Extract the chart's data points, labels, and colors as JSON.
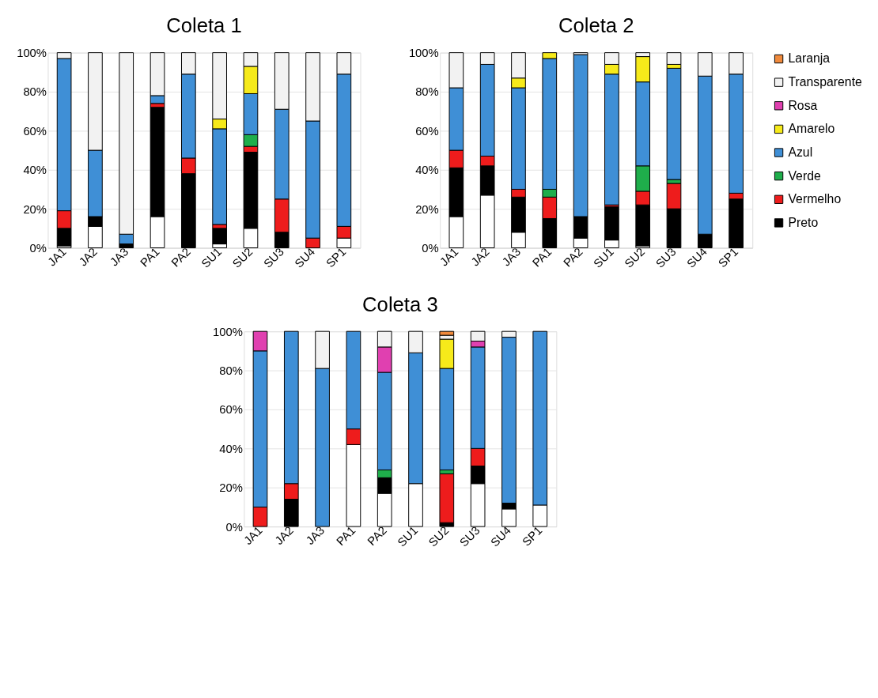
{
  "chart_data": [
    {
      "type": "bar",
      "title": "Coleta 1",
      "stacked": true,
      "legend": false,
      "grid": "y",
      "categories": [
        "JA1",
        "JA2",
        "JA3",
        "PA1",
        "PA2",
        "SU1",
        "SU2",
        "SU3",
        "SU4",
        "SP1"
      ],
      "ylim": [
        0,
        100
      ],
      "yticks": [
        {
          "value": 0,
          "label": "0%"
        },
        {
          "value": 20,
          "label": "20%"
        },
        {
          "value": 40,
          "label": "40%"
        },
        {
          "value": 60,
          "label": "60%"
        },
        {
          "value": 80,
          "label": "80%"
        },
        {
          "value": 100,
          "label": "100%"
        }
      ],
      "series": [
        {
          "color": "#ffffff",
          "values": [
            1,
            11,
            null,
            16,
            null,
            2,
            10,
            null,
            null,
            5
          ]
        },
        {
          "color": "#000000",
          "values": [
            9,
            5,
            2,
            56,
            38,
            8,
            39,
            8,
            null,
            null
          ]
        },
        {
          "color": "#ee1c1c",
          "values": [
            9,
            null,
            null,
            2,
            8,
            2,
            3,
            17,
            5,
            6
          ]
        },
        {
          "color": "#1fae4b",
          "values": [
            null,
            null,
            null,
            null,
            null,
            null,
            6,
            null,
            null,
            null
          ]
        },
        {
          "color": "#3f8fd6",
          "values": [
            78,
            34,
            5,
            4,
            43,
            49,
            21,
            46,
            60,
            78
          ]
        },
        {
          "color": "#f6ea1a",
          "values": [
            null,
            null,
            null,
            null,
            null,
            5,
            14,
            null,
            null,
            null
          ]
        },
        {
          "color": "#f2f2f2",
          "values": [
            3,
            50,
            93,
            22,
            11,
            34,
            7,
            29,
            35,
            11
          ]
        }
      ]
    },
    {
      "type": "bar",
      "title": "Coleta 2",
      "stacked": true,
      "legend": false,
      "grid": "y",
      "categories": [
        "JA1",
        "JA2",
        "JA3",
        "PA1",
        "PA2",
        "SU1",
        "SU2",
        "SU3",
        "SU4",
        "SP1"
      ],
      "ylim": [
        0,
        100
      ],
      "yticks": [
        {
          "value": 0,
          "label": "0%"
        },
        {
          "value": 20,
          "label": "20%"
        },
        {
          "value": 40,
          "label": "40%"
        },
        {
          "value": 60,
          "label": "60%"
        },
        {
          "value": 80,
          "label": "80%"
        },
        {
          "value": 100,
          "label": "100%"
        }
      ],
      "series": [
        {
          "color": "#ffffff",
          "values": [
            16,
            27,
            8,
            null,
            5,
            4,
            1,
            null,
            null,
            null
          ]
        },
        {
          "color": "#000000",
          "values": [
            25,
            15,
            18,
            15,
            11,
            17,
            21,
            20,
            7,
            25
          ]
        },
        {
          "color": "#ee1c1c",
          "values": [
            9,
            5,
            4,
            11,
            null,
            1,
            7,
            13,
            null,
            3
          ]
        },
        {
          "color": "#1fae4b",
          "values": [
            null,
            null,
            null,
            4,
            null,
            null,
            13,
            2,
            null,
            null
          ]
        },
        {
          "color": "#3f8fd6",
          "values": [
            32,
            47,
            52,
            67,
            83,
            67,
            43,
            57,
            81,
            61
          ]
        },
        {
          "color": "#f6ea1a",
          "values": [
            null,
            null,
            5,
            3,
            null,
            5,
            13,
            2,
            null,
            null
          ]
        },
        {
          "color": "#f2f2f2",
          "values": [
            18,
            6,
            13,
            null,
            1,
            6,
            2,
            6,
            12,
            11
          ]
        }
      ]
    },
    {
      "type": "bar",
      "title": "Coleta 3",
      "stacked": true,
      "legend": "right",
      "grid": "y",
      "categories": [
        "JA1",
        "JA2",
        "JA3",
        "PA1",
        "PA2",
        "SU1",
        "SU2",
        "SU3",
        "SU4",
        "SP1"
      ],
      "ylim": [
        0,
        100
      ],
      "yticks": [
        {
          "value": 0,
          "label": "0%"
        },
        {
          "value": 20,
          "label": "20%"
        },
        {
          "value": 40,
          "label": "40%"
        },
        {
          "value": 60,
          "label": "60%"
        },
        {
          "value": 80,
          "label": "80%"
        },
        {
          "value": 100,
          "label": "100%"
        }
      ],
      "series": [
        {
          "color": "#ffffff",
          "values": [
            null,
            null,
            null,
            42,
            17,
            22,
            null,
            22,
            9,
            11
          ]
        },
        {
          "name": "Preto",
          "color": "#000000",
          "values": [
            null,
            14,
            null,
            null,
            8,
            null,
            2,
            9,
            3,
            null
          ]
        },
        {
          "name": "Vermelho",
          "color": "#ee1c1c",
          "values": [
            10,
            8,
            null,
            8,
            null,
            null,
            25,
            9,
            null,
            null
          ]
        },
        {
          "name": "Verde",
          "color": "#1fae4b",
          "values": [
            null,
            null,
            null,
            null,
            4,
            null,
            2,
            null,
            null,
            null
          ]
        },
        {
          "name": "Azul",
          "color": "#3f8fd6",
          "values": [
            80,
            78,
            81,
            50,
            50,
            67,
            52,
            52,
            85,
            89
          ]
        },
        {
          "name": "Amarelo",
          "color": "#f6ea1a",
          "values": [
            null,
            null,
            null,
            null,
            null,
            null,
            15,
            null,
            null,
            null
          ]
        },
        {
          "name": "Rosa",
          "color": "#e040b0",
          "values": [
            10,
            null,
            null,
            null,
            13,
            null,
            null,
            3,
            null,
            null
          ]
        },
        {
          "name": "Transparente",
          "color": "#f2f2f2",
          "values": [
            null,
            null,
            19,
            null,
            8,
            11,
            2,
            5,
            3,
            null
          ]
        },
        {
          "name": "Laranja",
          "color": "#f08a3c",
          "values": [
            null,
            null,
            null,
            null,
            null,
            null,
            2,
            null,
            null,
            null
          ]
        }
      ]
    }
  ]
}
